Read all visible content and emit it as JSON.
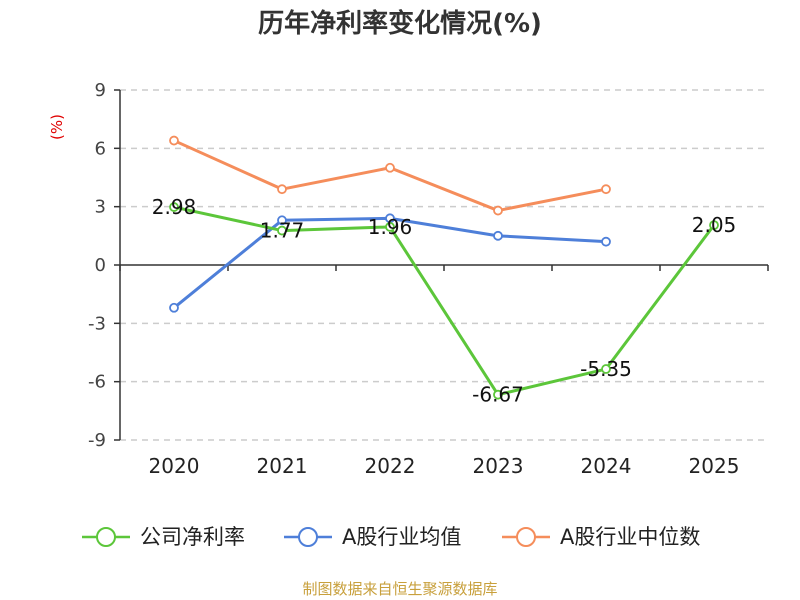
{
  "chart_data": {
    "type": "line",
    "title": "历年净利率变化情况(%)",
    "unit": "(%)",
    "categories": [
      "2020",
      "2021",
      "2022",
      "2023",
      "2024",
      "2025"
    ],
    "ylim": [
      -9,
      9
    ],
    "yticks": [
      9,
      6,
      3,
      0,
      -3,
      -6,
      -9
    ],
    "grid": true,
    "legend_position": "bottom",
    "series": [
      {
        "name": "公司净利率",
        "color": "#5cc63a",
        "values": [
          2.98,
          1.77,
          1.96,
          -6.67,
          -5.35,
          2.05
        ],
        "data_labels": [
          "2.98",
          "1.77",
          "1.96",
          "-6.67",
          "-5.35",
          "2.05"
        ]
      },
      {
        "name": "A股行业均值",
        "color": "#4e7fd9",
        "values": [
          -2.2,
          2.3,
          2.4,
          1.5,
          1.2,
          null
        ]
      },
      {
        "name": "A股行业中位数",
        "color": "#f58d5b",
        "values": [
          6.4,
          3.9,
          5.0,
          2.8,
          3.9,
          null
        ]
      }
    ]
  },
  "source": "制图数据来自恒生聚源数据库"
}
